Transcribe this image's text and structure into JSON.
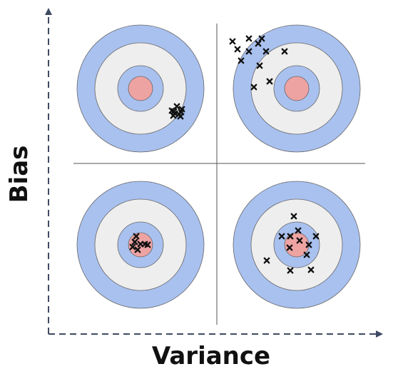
{
  "axes": {
    "x_label": "Variance",
    "y_label": "Bias"
  },
  "colors": {
    "axis": "#3f4a63",
    "divider": "#555555",
    "ring_outer": "#a9c1ef",
    "ring_white": "#eeeeee",
    "ring_mid": "#a9c1ef",
    "bullseye": "#eea3a3",
    "ring_stroke": "#666666",
    "marker": "#111111"
  },
  "targets": [
    {
      "name": "low-variance-high-bias",
      "marker_shape": "x",
      "hit_count": 9
    },
    {
      "name": "high-variance-high-bias",
      "marker_shape": "x",
      "hit_count": 12
    },
    {
      "name": "low-variance-low-bias",
      "marker_shape": "x",
      "hit_count": 7
    },
    {
      "name": "high-variance-low-bias",
      "marker_shape": "x",
      "hit_count": 12
    }
  ]
}
